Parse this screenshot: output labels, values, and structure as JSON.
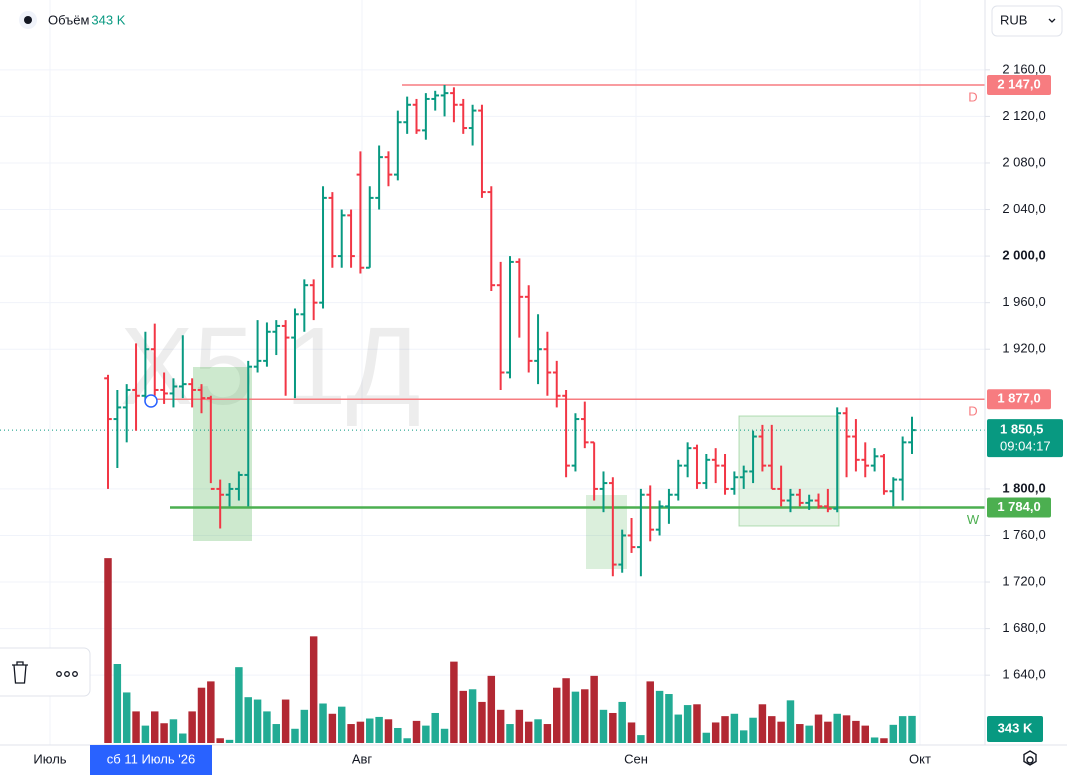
{
  "chart_data": {
    "type": "ohlc",
    "watermark": "Х5 1Д",
    "currency": "RUB",
    "legend_label": "Объём",
    "legend_value": "343 K",
    "ylim": [
      1580,
      2220
    ],
    "yticks": [
      {
        "value": 2160,
        "label": "2 160,0"
      },
      {
        "value": 2120,
        "label": "2 120,0"
      },
      {
        "value": 2080,
        "label": "2 080,0"
      },
      {
        "value": 2040,
        "label": "2 040,0"
      },
      {
        "value": 2000,
        "label": "2 000,0"
      },
      {
        "value": 1960,
        "label": "1 960,0"
      },
      {
        "value": 1920,
        "label": "1 920,0"
      },
      {
        "value": 1800,
        "label": "1 800,0"
      },
      {
        "value": 1760,
        "label": "1 760,0"
      },
      {
        "value": 1720,
        "label": "1 720,0"
      },
      {
        "value": 1680,
        "label": "1 680,0"
      },
      {
        "value": 1640,
        "label": "1 640,0"
      }
    ],
    "x_labels": [
      "Июль",
      "Авг",
      "Сен",
      "Окт"
    ],
    "crosshair_date": "сб 11 Июль '26",
    "up_color": "#089981",
    "down_color": "#f23645",
    "volume_up_color": "#22ab94",
    "volume_down_color": "#b22833",
    "open": [
      1895,
      1860,
      1870,
      1885,
      1880,
      1920,
      1885,
      1882,
      1888,
      1890,
      1885,
      1878,
      1800,
      1795,
      1800,
      1812,
      1905,
      1910,
      1935,
      1940,
      1930,
      1950,
      1975,
      1960,
      2050,
      2000,
      2035,
      2070,
      1990,
      2050,
      2085,
      2070,
      2115,
      2130,
      2108,
      2135,
      2138,
      2140,
      2130,
      2110,
      2125,
      2055,
      1975,
      1900,
      1995,
      1965,
      1910,
      1920,
      1900,
      1880,
      1820,
      1860,
      1840,
      1800,
      1805,
      1735,
      1760,
      1750,
      1795,
      1765,
      1785,
      1795,
      1820,
      1835,
      1805,
      1825,
      1820,
      1800,
      1810,
      1815,
      1845,
      1820,
      1800,
      1790,
      1795,
      1788,
      1790,
      1785,
      1783,
      1865,
      1845,
      1825,
      1820,
      1828,
      1798,
      1808,
      1840
    ],
    "high": [
      1898,
      1885,
      1890,
      1925,
      1935,
      1942,
      1900,
      1895,
      1932,
      1895,
      1890,
      1880,
      1808,
      1805,
      1815,
      1910,
      1945,
      1943,
      1945,
      1945,
      1955,
      1980,
      1980,
      2060,
      2055,
      2040,
      2040,
      2090,
      2060,
      2095,
      2090,
      2125,
      2137,
      2135,
      2140,
      2142,
      2147,
      2145,
      2135,
      2130,
      2130,
      2060,
      1995,
      2000,
      1998,
      1975,
      1950,
      1935,
      1910,
      1885,
      1865,
      1875,
      1840,
      1815,
      1810,
      1765,
      1775,
      1800,
      1803,
      1790,
      1800,
      1825,
      1840,
      1838,
      1830,
      1835,
      1830,
      1815,
      1820,
      1850,
      1855,
      1855,
      1820,
      1800,
      1800,
      1795,
      1796,
      1800,
      1870,
      1870,
      1860,
      1840,
      1835,
      1830,
      1810,
      1845,
      1862
    ],
    "low": [
      1800,
      1818,
      1840,
      1850,
      1875,
      1880,
      1873,
      1870,
      1878,
      1870,
      1865,
      1805,
      1766,
      1785,
      1790,
      1785,
      1900,
      1905,
      1915,
      1880,
      1878,
      1935,
      1945,
      1955,
      1990,
      1990,
      1990,
      1985,
      1990,
      2040,
      2060,
      2065,
      2105,
      2105,
      2100,
      2125,
      2120,
      2115,
      2105,
      2095,
      2050,
      1970,
      1885,
      1895,
      1930,
      1900,
      1890,
      1880,
      1870,
      1810,
      1815,
      1835,
      1790,
      1780,
      1725,
      1728,
      1745,
      1725,
      1755,
      1760,
      1770,
      1790,
      1810,
      1800,
      1800,
      1805,
      1795,
      1795,
      1800,
      1805,
      1815,
      1800,
      1785,
      1780,
      1785,
      1782,
      1783,
      1780,
      1780,
      1810,
      1815,
      1810,
      1815,
      1795,
      1785,
      1790,
      1830
    ],
    "close": [
      1860,
      1870,
      1885,
      1880,
      1920,
      1885,
      1882,
      1888,
      1890,
      1885,
      1878,
      1800,
      1795,
      1800,
      1812,
      1905,
      1910,
      1935,
      1940,
      1930,
      1950,
      1975,
      1960,
      2050,
      2000,
      2035,
      2000,
      1990,
      2050,
      2085,
      2070,
      2115,
      2130,
      2108,
      2135,
      2138,
      2140,
      2130,
      2110,
      2125,
      2055,
      1975,
      1900,
      1995,
      1965,
      1910,
      1920,
      1900,
      1880,
      1820,
      1860,
      1840,
      1800,
      1805,
      1735,
      1760,
      1750,
      1795,
      1765,
      1785,
      1795,
      1820,
      1835,
      1805,
      1825,
      1820,
      1800,
      1810,
      1815,
      1845,
      1820,
      1800,
      1790,
      1795,
      1788,
      1790,
      1785,
      1783,
      1865,
      1845,
      1825,
      1820,
      1828,
      1798,
      1808,
      1840,
      1850.5
    ],
    "volume": [
      2340,
      1000,
      640,
      400,
      220,
      400,
      250,
      300,
      120,
      400,
      700,
      780,
      60,
      40,
      960,
      580,
      550,
      400,
      240,
      550,
      180,
      420,
      1350,
      500,
      370,
      460,
      240,
      270,
      310,
      330,
      300,
      190,
      60,
      280,
      220,
      380,
      180,
      1030,
      660,
      680,
      520,
      850,
      420,
      240,
      420,
      270,
      300,
      240,
      700,
      820,
      650,
      680,
      850,
      420,
      380,
      520,
      260,
      100,
      780,
      660,
      620,
      360,
      480,
      490,
      130,
      260,
      340,
      370,
      160,
      320,
      490,
      340,
      270,
      540,
      240,
      220,
      360,
      270,
      370,
      350,
      280,
      220,
      70,
      60,
      230,
      340,
      343
    ],
    "volume_label": "343 K",
    "price_lines": [
      {
        "value": 2147,
        "label": "2 147,0",
        "tag": "D",
        "color": "#f77c80"
      },
      {
        "value": 1877,
        "label": "1 877,0",
        "tag": "D",
        "color": "#f77c80"
      },
      {
        "value": 1784,
        "label": "1 784,0",
        "tag": "W",
        "color": "#4caf50"
      }
    ],
    "last_price": {
      "value": 1850.5,
      "label": "1 850,5",
      "timer": "09:04:17",
      "color": "#089981"
    }
  }
}
